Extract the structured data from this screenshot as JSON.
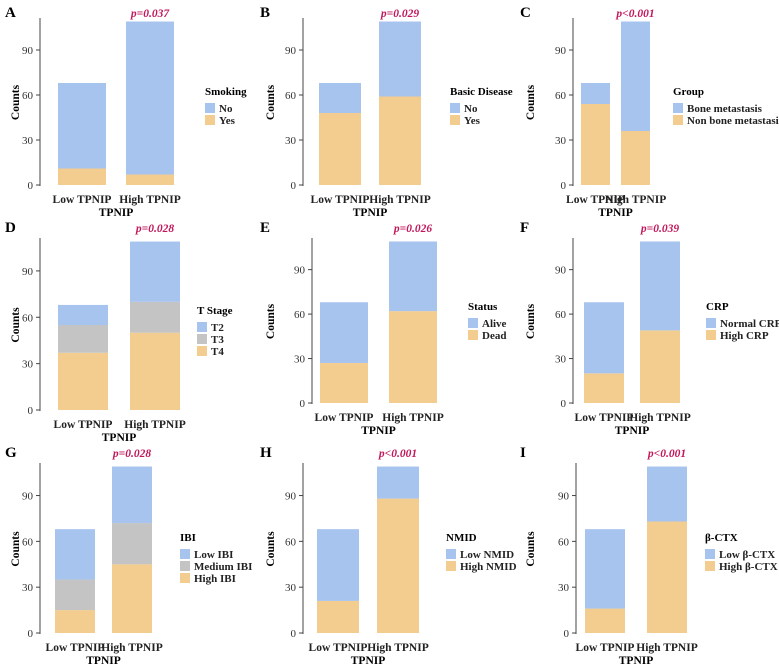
{
  "colors": {
    "blue": "#a7c4ef",
    "orange": "#f2cd8f",
    "gray": "#c4c4c4",
    "pvalue": "#c2185b",
    "axis": "#444444"
  },
  "chart_data": [
    {
      "type": "bar",
      "stacked": true,
      "panel": "A",
      "p_value": "p=0.037",
      "xlabel": "TPNIP",
      "ylabel": "Counts",
      "categories": [
        "Low TPNIP",
        "High TPNIP"
      ],
      "ylim": [
        0,
        110
      ],
      "yticks": [
        0,
        30,
        60,
        90
      ],
      "legend_title": "Smoking",
      "series": [
        {
          "name": "Yes",
          "color": "orange",
          "values": [
            11,
            7
          ]
        },
        {
          "name": "No",
          "color": "blue",
          "values": [
            57,
            102
          ]
        }
      ]
    },
    {
      "type": "bar",
      "stacked": true,
      "panel": "B",
      "p_value": "p=0.029",
      "xlabel": "TPNIP",
      "ylabel": "Counts",
      "categories": [
        "Low TPNIP",
        "High TPNIP"
      ],
      "ylim": [
        0,
        110
      ],
      "yticks": [
        0,
        30,
        60,
        90
      ],
      "legend_title": "Basic Disease",
      "series": [
        {
          "name": "Yes",
          "color": "orange",
          "values": [
            48,
            59
          ]
        },
        {
          "name": "No",
          "color": "blue",
          "values": [
            20,
            50
          ]
        }
      ]
    },
    {
      "type": "bar",
      "stacked": true,
      "panel": "C",
      "p_value": "p<0.001",
      "xlabel": "TPNIP",
      "ylabel": "Counts",
      "categories": [
        "Low TPNIP",
        "High TPNIP"
      ],
      "ylim": [
        0,
        110
      ],
      "yticks": [
        0,
        30,
        60,
        90
      ],
      "legend_title": "Group",
      "series": [
        {
          "name": "Non bone metastasis",
          "color": "orange",
          "values": [
            54,
            36
          ]
        },
        {
          "name": "Bone metastasis",
          "color": "blue",
          "values": [
            14,
            73
          ]
        }
      ]
    },
    {
      "type": "bar",
      "stacked": true,
      "panel": "D",
      "p_value": "p=0.028",
      "xlabel": "TPNIP",
      "ylabel": "Counts",
      "categories": [
        "Low TPNIP",
        "High TPNIP"
      ],
      "ylim": [
        0,
        110
      ],
      "yticks": [
        0,
        30,
        60,
        90
      ],
      "legend_title": "T Stage",
      "series": [
        {
          "name": "T4",
          "color": "orange",
          "values": [
            37,
            50
          ]
        },
        {
          "name": "T3",
          "color": "gray",
          "values": [
            18,
            20
          ]
        },
        {
          "name": "T2",
          "color": "blue",
          "values": [
            13,
            39
          ]
        }
      ]
    },
    {
      "type": "bar",
      "stacked": true,
      "panel": "E",
      "p_value": "p=0.026",
      "xlabel": "TPNIP",
      "ylabel": "Counts",
      "categories": [
        "Low TPNIP",
        "High TPNIP"
      ],
      "ylim": [
        0,
        110
      ],
      "yticks": [
        0,
        30,
        60,
        90
      ],
      "legend_title": "Status",
      "series": [
        {
          "name": "Dead",
          "color": "orange",
          "values": [
            27,
            62
          ]
        },
        {
          "name": "Alive",
          "color": "blue",
          "values": [
            41,
            47
          ]
        }
      ]
    },
    {
      "type": "bar",
      "stacked": true,
      "panel": "F",
      "p_value": "p=0.039",
      "xlabel": "TPNIP",
      "ylabel": "Counts",
      "categories": [
        "Low TPNIP",
        "High TPNIP"
      ],
      "ylim": [
        0,
        110
      ],
      "yticks": [
        0,
        30,
        60,
        90
      ],
      "legend_title": "CRP",
      "series": [
        {
          "name": "High CRP",
          "color": "orange",
          "values": [
            20,
            49
          ]
        },
        {
          "name": "Normal CRP",
          "color": "blue",
          "values": [
            48,
            60
          ]
        }
      ]
    },
    {
      "type": "bar",
      "stacked": true,
      "panel": "G",
      "p_value": "p=0.028",
      "xlabel": "TPNIP",
      "ylabel": "Counts",
      "categories": [
        "Low TPNIP",
        "High TPNIP"
      ],
      "ylim": [
        0,
        110
      ],
      "yticks": [
        0,
        30,
        60,
        90
      ],
      "legend_title": "IBI",
      "series": [
        {
          "name": "High IBI",
          "color": "orange",
          "values": [
            15,
            45
          ]
        },
        {
          "name": "Medium IBI",
          "color": "gray",
          "values": [
            20,
            27
          ]
        },
        {
          "name": "Low IBI",
          "color": "blue",
          "values": [
            33,
            37
          ]
        }
      ]
    },
    {
      "type": "bar",
      "stacked": true,
      "panel": "H",
      "p_value": "p<0.001",
      "xlabel": "TPNIP",
      "ylabel": "Counts",
      "categories": [
        "Low TPNIP",
        "High TPNIP"
      ],
      "ylim": [
        0,
        110
      ],
      "yticks": [
        0,
        30,
        60,
        90
      ],
      "legend_title": "NMID",
      "series": [
        {
          "name": "High NMID",
          "color": "orange",
          "values": [
            21,
            88
          ]
        },
        {
          "name": "Low NMID",
          "color": "blue",
          "values": [
            47,
            21
          ]
        }
      ]
    },
    {
      "type": "bar",
      "stacked": true,
      "panel": "I",
      "p_value": "p<0.001",
      "xlabel": "TPNIP",
      "ylabel": "Counts",
      "categories": [
        "Low TPNIP",
        "High TPNIP"
      ],
      "ylim": [
        0,
        110
      ],
      "yticks": [
        0,
        30,
        60,
        90
      ],
      "legend_title": "β-CTX",
      "series": [
        {
          "name": "High β-CTX",
          "color": "orange",
          "values": [
            16,
            73
          ]
        },
        {
          "name": "Low β-CTX",
          "color": "blue",
          "values": [
            52,
            36
          ]
        }
      ]
    }
  ]
}
